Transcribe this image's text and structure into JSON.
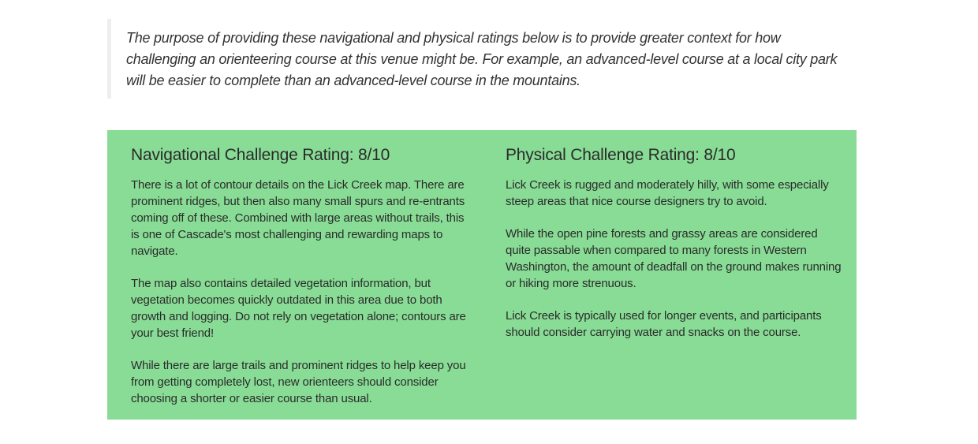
{
  "intro": {
    "text": "The purpose of providing these navigational and physical ratings below is to provide greater context for how challenging an orienteering course at this venue might be. For example, an advanced-level course at a local city park will be easier to complete than an advanced-level course in the mountains."
  },
  "navigational": {
    "title": "Navigational Challenge Rating: 8/10",
    "paragraphs": [
      "There is a lot of contour details on the Lick Creek map. There are prominent ridges, but then also many small spurs and re-entrants coming off of these. Combined with large areas without trails, this is one of Cascade's most challenging and rewarding maps to navigate.",
      "The map also contains detailed vegetation information, but vegetation becomes quickly outdated in this area due to both growth and logging. Do not rely on vegetation alone; contours are your best friend!",
      "While there are large trails and prominent ridges to help keep you from getting completely lost, new orienteers should consider choosing a shorter or easier course than usual."
    ]
  },
  "physical": {
    "title": "Physical Challenge Rating: 8/10",
    "paragraphs": [
      "Lick Creek is rugged and moderately hilly, with some especially steep areas that nice course designers try to avoid.",
      "While the open pine forests and grassy areas are considered quite passable when compared to many forests in Western Washington, the amount of deadfall on the ground makes running or hiking more strenuous.",
      "Lick Creek is typically used for longer events, and participants should consider carrying water and snacks on the course."
    ]
  },
  "colors": {
    "panel_background": "#88dc95",
    "quote_border": "#eeeeee"
  }
}
